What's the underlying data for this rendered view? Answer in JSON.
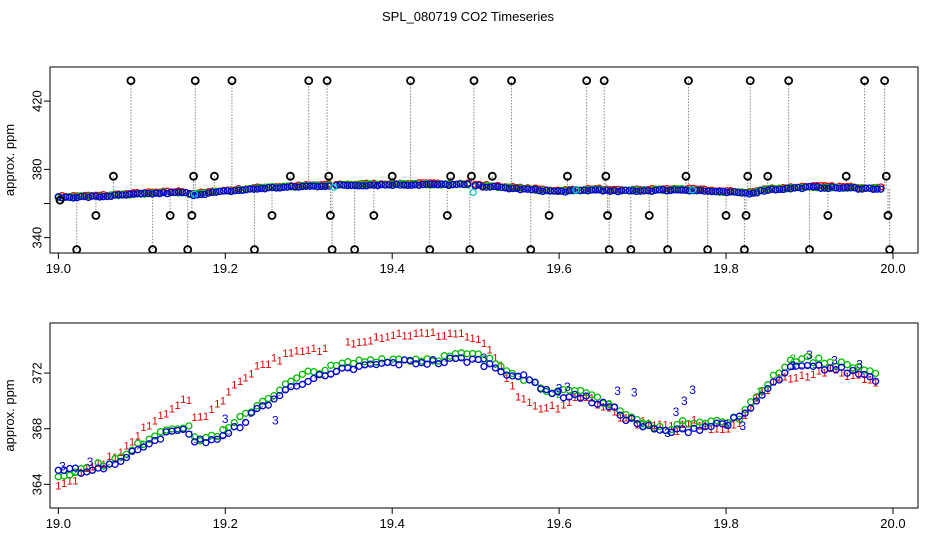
{
  "title": "SPL_080719  CO2 Timeseries",
  "colors": {
    "red": "#dd0000",
    "green": "#00bb00",
    "blue": "#0000cc",
    "cyan": "#00cccc",
    "black": "#000000",
    "gray": "#888888"
  },
  "chart_data": [
    {
      "type": "scatter",
      "name": "top-panel",
      "ylabel": "approx. ppm",
      "xlabel": "",
      "xlim": [
        18.99,
        20.03
      ],
      "ylim": [
        331,
        440
      ],
      "xticks": [
        "19.0",
        "19.2",
        "19.4",
        "19.6",
        "19.8",
        "20.0"
      ],
      "yticks": [
        "340",
        "380",
        "420"
      ],
      "yminor": [
        360
      ],
      "baseline": [
        [
          19.0,
          363.5
        ],
        [
          19.05,
          364
        ],
        [
          19.1,
          365.5
        ],
        [
          19.15,
          366.5
        ],
        [
          19.16,
          365
        ],
        [
          19.2,
          367
        ],
        [
          19.25,
          369
        ],
        [
          19.3,
          370
        ],
        [
          19.33,
          370.5
        ],
        [
          19.4,
          371
        ],
        [
          19.45,
          371
        ],
        [
          19.49,
          371
        ],
        [
          19.5,
          370.5
        ],
        [
          19.55,
          368.5
        ],
        [
          19.6,
          367
        ],
        [
          19.65,
          368
        ],
        [
          19.66,
          367
        ],
        [
          19.7,
          367.5
        ],
        [
          19.75,
          368
        ],
        [
          19.8,
          366.5
        ],
        [
          19.83,
          366
        ],
        [
          19.85,
          368
        ],
        [
          19.9,
          369.5
        ],
        [
          19.95,
          369
        ],
        [
          19.99,
          368.5
        ]
      ],
      "outliers": [
        {
          "x": 19.002,
          "y": 362
        },
        {
          "x": 19.022,
          "y": 333
        },
        {
          "x": 19.045,
          "y": 353
        },
        {
          "x": 19.066,
          "y": 376
        },
        {
          "x": 19.087,
          "y": 432
        },
        {
          "x": 19.113,
          "y": 333
        },
        {
          "x": 19.134,
          "y": 353
        },
        {
          "x": 19.155,
          "y": 333
        },
        {
          "x": 19.16,
          "y": 353
        },
        {
          "x": 19.162,
          "y": 376
        },
        {
          "x": 19.164,
          "y": 432
        },
        {
          "x": 19.187,
          "y": 376
        },
        {
          "x": 19.208,
          "y": 432
        },
        {
          "x": 19.235,
          "y": 333
        },
        {
          "x": 19.256,
          "y": 353
        },
        {
          "x": 19.278,
          "y": 376
        },
        {
          "x": 19.3,
          "y": 432
        },
        {
          "x": 19.322,
          "y": 432
        },
        {
          "x": 19.324,
          "y": 376
        },
        {
          "x": 19.326,
          "y": 353
        },
        {
          "x": 19.328,
          "y": 333
        },
        {
          "x": 19.355,
          "y": 333
        },
        {
          "x": 19.378,
          "y": 353
        },
        {
          "x": 19.4,
          "y": 376
        },
        {
          "x": 19.422,
          "y": 432
        },
        {
          "x": 19.445,
          "y": 333
        },
        {
          "x": 19.466,
          "y": 353
        },
        {
          "x": 19.47,
          "y": 376
        },
        {
          "x": 19.493,
          "y": 333
        },
        {
          "x": 19.495,
          "y": 376
        },
        {
          "x": 19.498,
          "y": 432
        },
        {
          "x": 19.52,
          "y": 376
        },
        {
          "x": 19.543,
          "y": 432
        },
        {
          "x": 19.566,
          "y": 333
        },
        {
          "x": 19.588,
          "y": 353
        },
        {
          "x": 19.61,
          "y": 376
        },
        {
          "x": 19.633,
          "y": 432
        },
        {
          "x": 19.654,
          "y": 432
        },
        {
          "x": 19.656,
          "y": 376
        },
        {
          "x": 19.658,
          "y": 353
        },
        {
          "x": 19.66,
          "y": 333
        },
        {
          "x": 19.686,
          "y": 333
        },
        {
          "x": 19.708,
          "y": 353
        },
        {
          "x": 19.73,
          "y": 333
        },
        {
          "x": 19.752,
          "y": 376
        },
        {
          "x": 19.755,
          "y": 432
        },
        {
          "x": 19.778,
          "y": 333
        },
        {
          "x": 19.8,
          "y": 353
        },
        {
          "x": 19.822,
          "y": 333
        },
        {
          "x": 19.824,
          "y": 353
        },
        {
          "x": 19.826,
          "y": 376
        },
        {
          "x": 19.829,
          "y": 432
        },
        {
          "x": 19.85,
          "y": 376
        },
        {
          "x": 19.875,
          "y": 432
        },
        {
          "x": 19.9,
          "y": 333
        },
        {
          "x": 19.922,
          "y": 353
        },
        {
          "x": 19.944,
          "y": 376
        },
        {
          "x": 19.966,
          "y": 432
        },
        {
          "x": 19.99,
          "y": 432
        },
        {
          "x": 19.992,
          "y": 376
        },
        {
          "x": 19.994,
          "y": 353
        },
        {
          "x": 19.996,
          "y": 333
        }
      ]
    },
    {
      "type": "scatter",
      "name": "bottom-panel",
      "ylabel": "approx. ppm",
      "xlabel": "",
      "xlim": [
        18.99,
        20.03
      ],
      "ylim": [
        362.3,
        375.6
      ],
      "xticks": [
        "19.0",
        "19.2",
        "19.4",
        "19.6",
        "19.8",
        "20.0"
      ],
      "yticks": [
        "364",
        "368",
        "372"
      ],
      "series": [
        {
          "name": "1",
          "marker": "1",
          "color": "red",
          "offset": -0.6,
          "points": [
            [
              19.0,
              363.8
            ],
            [
              19.02,
              364.4
            ],
            [
              19.04,
              365.2
            ],
            [
              19.06,
              365.8
            ],
            [
              19.08,
              366.6
            ],
            [
              19.1,
              367.8
            ],
            [
              19.12,
              368.8
            ],
            [
              19.14,
              369.8
            ],
            [
              19.16,
              370.2
            ],
            [
              19.163,
              368.6
            ],
            [
              19.18,
              369.2
            ],
            [
              19.2,
              370.4
            ],
            [
              19.22,
              371.6
            ],
            [
              19.24,
              372.6
            ],
            [
              19.26,
              373.0
            ],
            [
              19.28,
              373.4
            ],
            [
              19.3,
              373.6
            ],
            [
              19.33,
              373.8
            ],
            [
              19.34,
              374.2
            ],
            [
              19.36,
              374.4
            ],
            [
              19.38,
              374.6
            ],
            [
              19.4,
              374.8
            ],
            [
              19.42,
              374.8
            ],
            [
              19.44,
              374.8
            ],
            [
              19.46,
              374.8
            ],
            [
              19.48,
              374.9
            ],
            [
              19.5,
              374.4
            ],
            [
              19.52,
              373.6
            ],
            [
              19.54,
              371.2
            ],
            [
              19.56,
              369.8
            ],
            [
              19.58,
              369.4
            ],
            [
              19.6,
              369.6
            ],
            [
              19.62,
              370.2
            ],
            [
              19.64,
              370.2
            ],
            [
              19.66,
              369.4
            ],
            [
              19.68,
              368.8
            ],
            [
              19.7,
              368.4
            ],
            [
              19.72,
              368.2
            ],
            [
              19.74,
              368.0
            ],
            [
              19.76,
              368.6
            ],
            [
              19.78,
              368.2
            ],
            [
              19.8,
              368.0
            ],
            [
              19.82,
              368.8
            ],
            [
              19.84,
              370.4
            ],
            [
              19.86,
              371.6
            ],
            [
              19.88,
              371.8
            ],
            [
              19.9,
              372.0
            ],
            [
              19.92,
              372.2
            ],
            [
              19.94,
              372.0
            ],
            [
              19.96,
              371.8
            ],
            [
              19.98,
              371.4
            ]
          ]
        },
        {
          "name": "2",
          "marker": "o",
          "color": "green",
          "offset": -0.2,
          "points": [
            [
              19.0,
              364.6
            ],
            [
              19.02,
              365.0
            ],
            [
              19.04,
              365.2
            ],
            [
              19.06,
              365.6
            ],
            [
              19.08,
              366.0
            ],
            [
              19.1,
              367.0
            ],
            [
              19.12,
              367.8
            ],
            [
              19.14,
              368.2
            ],
            [
              19.16,
              368.2
            ],
            [
              19.163,
              367.2
            ],
            [
              19.18,
              367.4
            ],
            [
              19.2,
              367.8
            ],
            [
              19.22,
              368.8
            ],
            [
              19.24,
              369.8
            ],
            [
              19.26,
              370.6
            ],
            [
              19.28,
              371.4
            ],
            [
              19.3,
              372.0
            ],
            [
              19.33,
              372.4
            ],
            [
              19.34,
              372.6
            ],
            [
              19.36,
              372.8
            ],
            [
              19.38,
              373.0
            ],
            [
              19.4,
              373.0
            ],
            [
              19.42,
              373.0
            ],
            [
              19.44,
              373.0
            ],
            [
              19.46,
              373.1
            ],
            [
              19.48,
              373.3
            ],
            [
              19.5,
              373.3
            ],
            [
              19.52,
              372.8
            ],
            [
              19.54,
              372.3
            ],
            [
              19.56,
              371.6
            ],
            [
              19.58,
              371.0
            ],
            [
              19.6,
              370.6
            ],
            [
              19.62,
              370.6
            ],
            [
              19.64,
              370.4
            ],
            [
              19.66,
              369.8
            ],
            [
              19.68,
              369.0
            ],
            [
              19.7,
              368.4
            ],
            [
              19.72,
              368.0
            ],
            [
              19.74,
              368.2
            ],
            [
              19.76,
              368.6
            ],
            [
              19.78,
              368.6
            ],
            [
              19.8,
              368.4
            ],
            [
              19.82,
              369.0
            ],
            [
              19.84,
              370.6
            ],
            [
              19.86,
              372.0
            ],
            [
              19.88,
              373.0
            ],
            [
              19.9,
              373.0
            ],
            [
              19.92,
              372.8
            ],
            [
              19.94,
              372.6
            ],
            [
              19.96,
              372.4
            ],
            [
              19.98,
              372.0
            ]
          ]
        },
        {
          "name": "3",
          "marker": "o",
          "color": "blue",
          "offset": 0.0,
          "points": [
            [
              19.0,
              364.8
            ],
            [
              19.02,
              365.0
            ],
            [
              19.04,
              365.0
            ],
            [
              19.06,
              365.4
            ],
            [
              19.08,
              365.8
            ],
            [
              19.1,
              366.8
            ],
            [
              19.12,
              367.4
            ],
            [
              19.14,
              367.8
            ],
            [
              19.16,
              367.8
            ],
            [
              19.163,
              367.0
            ],
            [
              19.18,
              367.2
            ],
            [
              19.2,
              367.4
            ],
            [
              19.22,
              368.4
            ],
            [
              19.24,
              369.4
            ],
            [
              19.26,
              370.2
            ],
            [
              19.28,
              371.0
            ],
            [
              19.3,
              371.6
            ],
            [
              19.33,
              371.8
            ],
            [
              19.34,
              372.2
            ],
            [
              19.36,
              372.4
            ],
            [
              19.38,
              372.6
            ],
            [
              19.4,
              372.7
            ],
            [
              19.42,
              372.8
            ],
            [
              19.44,
              372.8
            ],
            [
              19.46,
              372.8
            ],
            [
              19.48,
              373.0
            ],
            [
              19.5,
              372.9
            ],
            [
              19.52,
              372.5
            ],
            [
              19.54,
              372.0
            ],
            [
              19.56,
              371.6
            ],
            [
              19.58,
              371.0
            ],
            [
              19.6,
              370.4
            ],
            [
              19.62,
              370.4
            ],
            [
              19.64,
              370.0
            ],
            [
              19.66,
              369.6
            ],
            [
              19.68,
              368.8
            ],
            [
              19.7,
              368.2
            ],
            [
              19.72,
              367.8
            ],
            [
              19.74,
              367.8
            ],
            [
              19.76,
              368.0
            ],
            [
              19.78,
              368.2
            ],
            [
              19.8,
              368.4
            ],
            [
              19.82,
              368.8
            ],
            [
              19.84,
              370.2
            ],
            [
              19.86,
              371.4
            ],
            [
              19.88,
              372.4
            ],
            [
              19.9,
              372.4
            ],
            [
              19.92,
              372.4
            ],
            [
              19.94,
              372.2
            ],
            [
              19.96,
              372.0
            ],
            [
              19.98,
              371.6
            ]
          ]
        }
      ]
    }
  ]
}
